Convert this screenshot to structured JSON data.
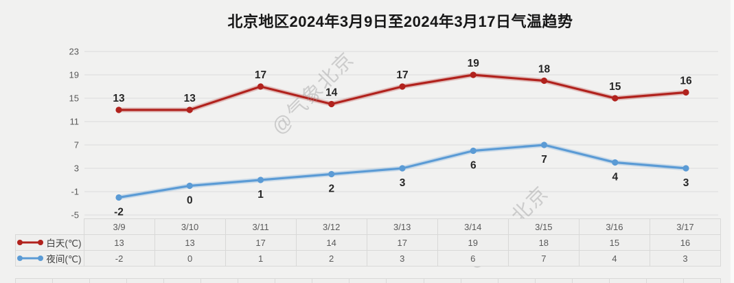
{
  "title": "北京地区2024年3月9日至2024年3月17日气温趋势",
  "watermark": "@气象北京",
  "colors": {
    "day_series": "#b1221d",
    "night_series": "#5b9bd5",
    "gridline": "#dcdcdc",
    "axis_text": "#595959",
    "data_label": "#262626",
    "background": "#f1f1f0"
  },
  "chart_data": {
    "type": "line",
    "title": "北京地区2024年3月9日至2024年3月17日气温趋势",
    "categories": [
      "3/9",
      "3/10",
      "3/11",
      "3/12",
      "3/13",
      "3/14",
      "3/15",
      "3/16",
      "3/17"
    ],
    "series": [
      {
        "name": "白天(℃)",
        "color": "#b1221d",
        "values": [
          13,
          13,
          17,
          14,
          17,
          19,
          18,
          15,
          16
        ],
        "label_position": "above"
      },
      {
        "name": "夜间(℃)",
        "color": "#5b9bd5",
        "values": [
          -2,
          0,
          1,
          2,
          3,
          6,
          7,
          4,
          3
        ],
        "label_position": "below"
      }
    ],
    "ylim": [
      -5,
      23
    ],
    "yticks": [
      23,
      19,
      15,
      11,
      7,
      3,
      -1,
      -5
    ],
    "grid": true,
    "legend_position": "table-left",
    "data_table_shown": true
  }
}
